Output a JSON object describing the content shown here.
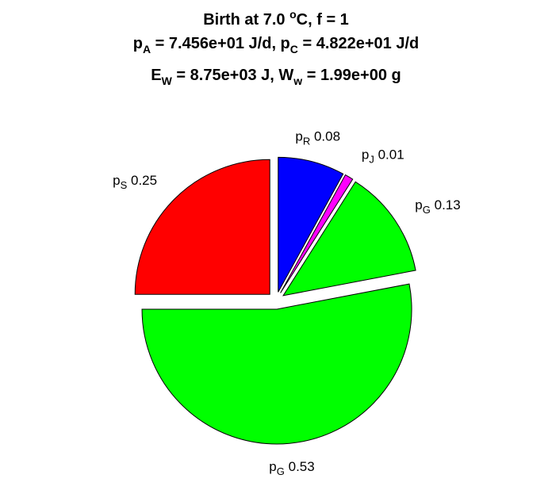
{
  "chart_data": {
    "type": "pie",
    "title_lines": [
      [
        "Birth at 7.0 ",
        {
          "sup": "o"
        },
        "C, f = 1"
      ],
      [
        "p",
        {
          "sub": "A"
        },
        " = 7.456e+01 J/d, p",
        {
          "sub": "C"
        },
        " = 4.822e+01 J/d"
      ],
      [
        "E",
        {
          "sub": "W"
        },
        " = 8.75e+03 J, W",
        {
          "sub": "w"
        },
        " = 1.99e+00 g"
      ]
    ],
    "slices": [
      {
        "base": "p",
        "sub": "R",
        "value": 0.08,
        "color": "#0000ff"
      },
      {
        "base": "p",
        "sub": "J",
        "value": 0.01,
        "color": "#ff00ff"
      },
      {
        "base": "p",
        "sub": "G",
        "value": 0.13,
        "color": "#00ff00"
      },
      {
        "base": "p",
        "sub": "G",
        "value": 0.53,
        "color": "#00ff00"
      },
      {
        "base": "p",
        "sub": "S",
        "value": 0.25,
        "color": "#ff0000"
      }
    ],
    "start_angle": "top",
    "direction": "clockwise",
    "exploded": true
  }
}
